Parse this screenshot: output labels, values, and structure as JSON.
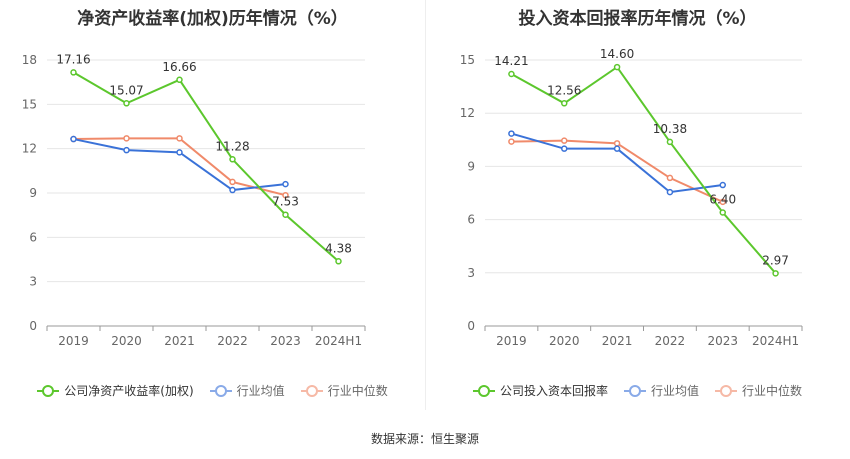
{
  "source": "数据来源：恒生聚源",
  "colors": {
    "company": "#5cc72d",
    "avg": "#3a72d8",
    "median": "#f08a6a"
  },
  "chart_data": [
    {
      "type": "line",
      "title": "净资产收益率(加权)历年情况（%）",
      "categories": [
        "2019",
        "2020",
        "2021",
        "2022",
        "2023",
        "2024H1"
      ],
      "ylim": [
        0,
        18
      ],
      "yticks": [
        0,
        3,
        6,
        9,
        12,
        15,
        18
      ],
      "grid": true,
      "legend_position": "bottom",
      "series": [
        {
          "key": "company",
          "name": "公司净资产收益率(加权)",
          "values": [
            17.16,
            15.07,
            16.66,
            11.28,
            7.53,
            4.38
          ],
          "labels": [
            "17.16",
            "15.07",
            "16.66",
            "11.28",
            "7.53",
            "4.38"
          ]
        },
        {
          "key": "avg",
          "name": "行业均值",
          "values": [
            12.65,
            11.9,
            11.75,
            9.2,
            9.6,
            null
          ]
        },
        {
          "key": "median",
          "name": "行业中位数",
          "values": [
            12.65,
            12.7,
            12.7,
            9.75,
            8.85,
            null
          ]
        }
      ]
    },
    {
      "type": "line",
      "title": "投入资本回报率历年情况（%）",
      "categories": [
        "2019",
        "2020",
        "2021",
        "2022",
        "2023",
        "2024H1"
      ],
      "ylim": [
        0,
        15
      ],
      "yticks": [
        0,
        3,
        6,
        9,
        12,
        15
      ],
      "grid": true,
      "legend_position": "bottom",
      "series": [
        {
          "key": "company",
          "name": "公司投入资本回报率",
          "values": [
            14.21,
            12.56,
            14.6,
            10.38,
            6.4,
            2.97
          ],
          "labels": [
            "14.21",
            "12.56",
            "14.60",
            "10.38",
            "6.40",
            "2.97"
          ]
        },
        {
          "key": "avg",
          "name": "行业均值",
          "values": [
            10.85,
            10.0,
            10.0,
            7.55,
            7.95,
            null
          ]
        },
        {
          "key": "median",
          "name": "行业中位数",
          "values": [
            10.4,
            10.45,
            10.3,
            8.35,
            7.0,
            null
          ]
        }
      ]
    }
  ]
}
